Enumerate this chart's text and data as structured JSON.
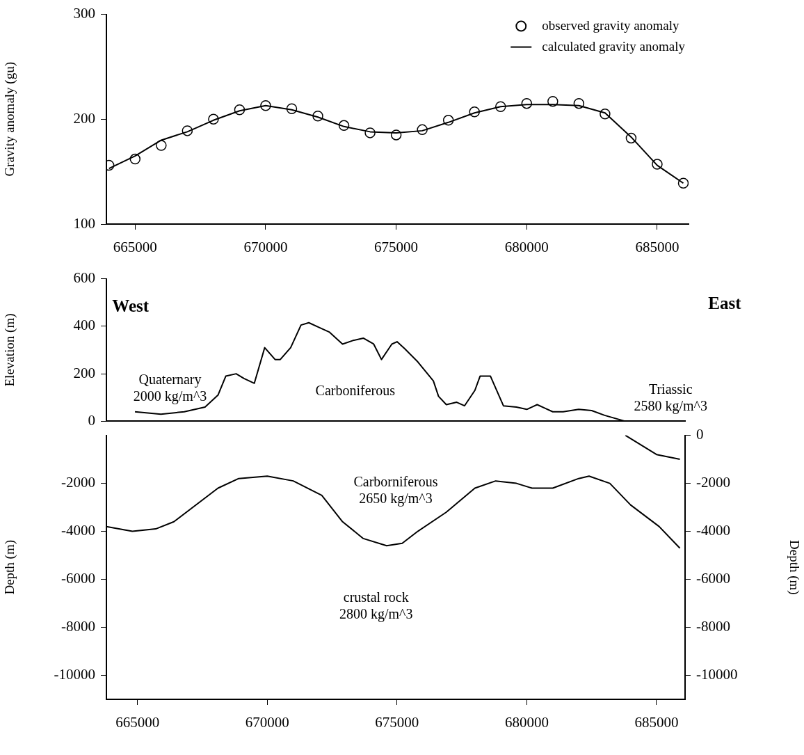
{
  "chart_data": [
    {
      "type": "line",
      "ylabel": "Gravity anomaly (gu)",
      "xlim": [
        663900,
        686200
      ],
      "xticks": [
        665000,
        670000,
        675000,
        680000,
        685000
      ],
      "ylim": [
        100,
        300
      ],
      "yticks": [
        100,
        200,
        300
      ],
      "legend": "top right",
      "series": [
        {
          "name": "observed gravity anomaly",
          "type": "scatter",
          "marker": "circle",
          "color": "#000000",
          "x": [
            664000,
            665000,
            666000,
            667000,
            668000,
            669000,
            670000,
            671000,
            672000,
            673000,
            674000,
            675000,
            676000,
            677000,
            678000,
            679000,
            680000,
            681000,
            682000,
            683000,
            684000,
            685000,
            686000
          ],
          "values": [
            156,
            162,
            175,
            189,
            200,
            209,
            213,
            210,
            203,
            194,
            187,
            185,
            190,
            199,
            207,
            212,
            215,
            217,
            215,
            205,
            182,
            157,
            139
          ]
        },
        {
          "name": "calculated gravity anomaly",
          "marker": "none",
          "color": "#000000",
          "x": [
            664000,
            665000,
            666000,
            667000,
            668000,
            669000,
            670000,
            671000,
            672000,
            673000,
            674000,
            675000,
            676000,
            677000,
            678000,
            679000,
            680000,
            681000,
            682000,
            683000,
            684000,
            685000,
            686000
          ],
          "values": [
            153,
            165,
            180,
            188,
            199,
            208,
            213,
            209,
            202,
            193,
            188,
            187,
            189,
            197,
            206,
            212,
            214,
            214,
            213,
            206,
            183,
            156,
            139
          ]
        }
      ]
    },
    {
      "type": "line",
      "ylabel": "Elevation (m)",
      "xlim": [
        663800,
        686100
      ],
      "ylim": [
        0,
        600
      ],
      "yticks": [
        0,
        200,
        400,
        600
      ],
      "tick_labels": "y",
      "annotations": [
        "West",
        "East",
        "Quaternary\n2000 kg/m^3",
        "Carboniferous",
        "Triassic\n2580 kg/m^3"
      ],
      "series": [
        {
          "color": "#000000",
          "x": [
            664900,
            665900,
            666800,
            667600,
            668100,
            668400,
            668800,
            669100,
            669500,
            669900,
            670300,
            670500,
            670900,
            671300,
            671600,
            672000,
            672400,
            672900,
            673300,
            673700,
            674100,
            674400,
            674800,
            675000,
            675300,
            675800,
            676400,
            676600,
            676900,
            677300,
            677600,
            678000,
            678200,
            678600,
            678800,
            679100,
            679600,
            680000,
            680400,
            680700,
            681000,
            681400,
            682000,
            682500,
            683000,
            683800
          ],
          "values": [
            40,
            30,
            40,
            60,
            110,
            190,
            200,
            180,
            160,
            310,
            260,
            260,
            310,
            405,
            415,
            395,
            375,
            325,
            340,
            350,
            325,
            260,
            325,
            335,
            305,
            250,
            170,
            105,
            70,
            80,
            65,
            130,
            190,
            190,
            140,
            65,
            60,
            50,
            70,
            55,
            40,
            40,
            50,
            45,
            25,
            0
          ]
        }
      ]
    },
    {
      "type": "line",
      "ylabel": "Depth (m)",
      "y2label": "Depth (m)",
      "xlim": [
        663800,
        686100
      ],
      "xticks": [
        665000,
        670000,
        675000,
        680000,
        685000
      ],
      "ylim": [
        -11000,
        0
      ],
      "yticks": [
        -2000,
        -4000,
        -6000,
        -8000,
        -10000
      ],
      "y2lim": [
        -11000,
        0
      ],
      "y2ticks": [
        0,
        -2000,
        -4000,
        -6000,
        -8000,
        -10000
      ],
      "annotations": [
        "Carborniferous\n2650 kg/m^3",
        "crustal rock\n2800 kg/m^3"
      ],
      "series": [
        {
          "color": "#000000",
          "x": [
            663800,
            664800,
            665700,
            666400,
            668100,
            668900,
            670000,
            671000,
            672100,
            672900,
            673700,
            674600,
            675200,
            675800,
            676900,
            678000,
            678800,
            679600,
            680200,
            681000,
            682000,
            682400,
            683200,
            684000,
            685100,
            685900
          ],
          "values": [
            -3800,
            -4000,
            -3900,
            -3600,
            -2200,
            -1800,
            -1700,
            -1900,
            -2500,
            -3600,
            -4300,
            -4600,
            -4500,
            -4000,
            -3200,
            -2200,
            -1900,
            -2000,
            -2200,
            -2200,
            -1800,
            -1700,
            -2000,
            -2900,
            -3800,
            -4700
          ]
        },
        {
          "color": "#000000",
          "x": [
            683800,
            685000,
            685900
          ],
          "values": [
            0,
            -800,
            -1000
          ]
        }
      ]
    }
  ]
}
